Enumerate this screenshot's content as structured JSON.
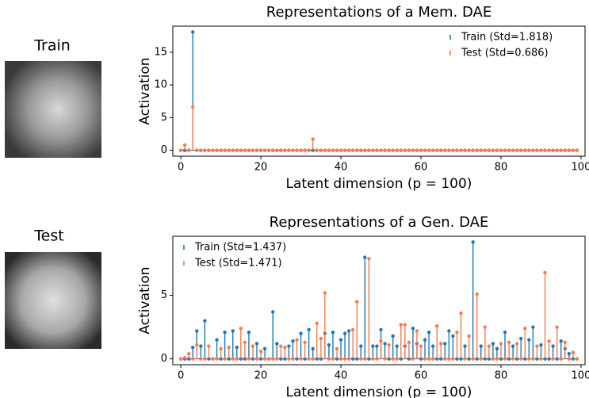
{
  "panels": [
    {
      "label": "Train"
    },
    {
      "label": "Test"
    }
  ],
  "chart_data": [
    {
      "type": "stem",
      "title": "Representations of a Mem. DAE",
      "xlabel": "Latent dimension (p = 100)",
      "ylabel": "Activation",
      "legend": "upper right",
      "x": [
        0,
        1,
        2,
        3,
        4,
        5,
        6,
        7,
        8,
        9,
        10,
        11,
        12,
        13,
        14,
        15,
        16,
        17,
        18,
        19,
        20,
        21,
        22,
        23,
        24,
        25,
        26,
        27,
        28,
        29,
        30,
        31,
        32,
        33,
        34,
        35,
        36,
        37,
        38,
        39,
        40,
        41,
        42,
        43,
        44,
        45,
        46,
        47,
        48,
        49,
        50,
        51,
        52,
        53,
        54,
        55,
        56,
        57,
        58,
        59,
        60,
        61,
        62,
        63,
        64,
        65,
        66,
        67,
        68,
        69,
        70,
        71,
        72,
        73,
        74,
        75,
        76,
        77,
        78,
        79,
        80,
        81,
        82,
        83,
        84,
        85,
        86,
        87,
        88,
        89,
        90,
        91,
        92,
        93,
        94,
        95,
        96,
        97,
        98,
        99
      ],
      "xlim": [
        -2,
        101
      ],
      "xticks": [
        0,
        20,
        40,
        60,
        80,
        100
      ],
      "ylim": [
        -0.9,
        19
      ],
      "yticks": [
        0,
        5,
        10,
        15
      ],
      "series": [
        {
          "name": "Train (Std=1.818)",
          "color": "#1f77b4",
          "values": [
            0,
            0,
            0,
            18.1,
            0,
            0,
            0,
            0,
            0,
            0,
            0,
            0,
            0,
            0,
            0,
            0,
            0,
            0,
            0,
            0,
            0,
            0,
            0,
            0,
            0,
            0,
            0,
            0,
            0,
            0,
            0,
            0,
            0,
            0,
            0,
            0,
            0,
            0,
            0,
            0,
            0,
            0,
            0,
            0,
            0,
            0,
            0,
            0,
            0,
            0,
            0,
            0,
            0,
            0,
            0,
            0,
            0,
            0,
            0,
            0,
            0,
            0,
            0,
            0,
            0,
            0,
            0,
            0,
            0,
            0,
            0,
            0,
            0,
            0,
            0,
            0,
            0,
            0,
            0,
            0,
            0,
            0,
            0,
            0,
            0,
            0,
            0,
            0,
            0,
            0,
            0,
            0,
            0,
            0,
            0,
            0,
            0,
            0,
            0,
            0
          ]
        },
        {
          "name": "Test (Std=0.686)",
          "color": "#f27c50",
          "values": [
            0,
            0.8,
            0,
            6.6,
            0,
            0,
            0,
            0,
            0,
            0,
            0,
            0,
            0,
            0,
            0,
            0,
            0,
            0,
            0,
            0,
            0,
            0,
            0,
            0,
            0,
            0,
            0,
            0,
            0,
            0,
            0,
            0,
            0,
            1.7,
            0,
            0,
            0,
            0,
            0,
            0,
            0,
            0,
            0,
            0,
            0,
            0,
            0,
            0,
            0,
            0,
            0,
            0,
            0,
            0,
            0,
            0,
            0,
            0,
            0,
            0,
            0,
            0,
            0,
            0,
            0,
            0,
            0,
            0,
            0,
            0,
            0,
            0,
            0,
            0,
            0,
            0,
            0,
            0,
            0,
            0,
            0,
            0,
            0,
            0,
            0,
            0,
            0,
            0,
            0,
            0,
            0,
            0,
            0,
            0,
            0,
            0,
            0,
            0,
            0,
            0
          ]
        }
      ]
    },
    {
      "type": "stem",
      "title": "Representations of a Gen. DAE",
      "xlabel": "Latent dimension (p = 100)",
      "ylabel": "Activation",
      "legend": "upper left",
      "x": [
        0,
        1,
        2,
        3,
        4,
        5,
        6,
        7,
        8,
        9,
        10,
        11,
        12,
        13,
        14,
        15,
        16,
        17,
        18,
        19,
        20,
        21,
        22,
        23,
        24,
        25,
        26,
        27,
        28,
        29,
        30,
        31,
        32,
        33,
        34,
        35,
        36,
        37,
        38,
        39,
        40,
        41,
        42,
        43,
        44,
        45,
        46,
        47,
        48,
        49,
        50,
        51,
        52,
        53,
        54,
        55,
        56,
        57,
        58,
        59,
        60,
        61,
        62,
        63,
        64,
        65,
        66,
        67,
        68,
        69,
        70,
        71,
        72,
        73,
        74,
        75,
        76,
        77,
        78,
        79,
        80,
        81,
        82,
        83,
        84,
        85,
        86,
        87,
        88,
        89,
        90,
        91,
        92,
        93,
        94,
        95,
        96,
        97,
        98,
        99
      ],
      "xlim": [
        -2,
        101
      ],
      "xticks": [
        0,
        20,
        40,
        60,
        80,
        100
      ],
      "ylim": [
        -0.46,
        9.66
      ],
      "yticks": [
        0,
        5
      ],
      "series": [
        {
          "name": "Train (Std=1.437)",
          "color": "#1f77b4",
          "values": [
            0,
            0,
            0,
            0.9,
            2.2,
            1.0,
            3.0,
            0,
            0,
            1.5,
            0,
            2.1,
            0,
            2.2,
            0.9,
            0,
            0,
            2.1,
            0,
            1.2,
            0,
            0.8,
            0,
            3.7,
            1.2,
            0,
            0,
            1.0,
            1.4,
            0,
            2.0,
            0,
            2.3,
            0.8,
            0,
            0,
            2.0,
            1.1,
            2.1,
            0,
            1.5,
            2.0,
            2.2,
            0,
            0,
            1.0,
            8.0,
            0,
            1.0,
            1.0,
            2.3,
            1.2,
            0,
            1.8,
            1.0,
            0,
            1.0,
            0,
            2.4,
            1.2,
            0,
            1.5,
            2.1,
            1.0,
            0,
            0,
            1.2,
            2.2,
            1.8,
            0,
            0,
            1.0,
            0,
            9.2,
            0,
            1.0,
            0,
            0,
            1.2,
            0.8,
            0,
            2.1,
            0,
            1.0,
            0,
            1.6,
            0,
            1.5,
            2.5,
            0,
            1.1,
            0,
            0,
            1.0,
            0,
            1.4,
            0.8,
            0.4,
            0,
            0
          ]
        },
        {
          "name": "Test (Std=1.471)",
          "color": "#f27c50",
          "values": [
            0,
            0.1,
            0.4,
            0,
            1.1,
            0,
            0,
            1.0,
            0,
            0,
            0.8,
            0,
            0.9,
            0,
            0,
            2.4,
            1.3,
            0,
            1.0,
            0,
            0.6,
            0,
            0,
            0,
            0,
            1.0,
            0.9,
            0,
            0,
            1.5,
            0,
            1.3,
            0,
            0,
            2.8,
            1.6,
            5.2,
            0,
            0,
            0.8,
            0,
            0,
            0,
            2.3,
            4.5,
            0,
            0,
            7.9,
            0,
            0,
            1.4,
            0,
            1.1,
            0,
            0,
            2.7,
            2.7,
            1.3,
            0,
            2.2,
            1.0,
            0,
            0,
            0,
            2.6,
            1.2,
            0,
            0,
            0,
            2.1,
            3.6,
            0,
            1.8,
            0,
            5.1,
            0,
            2.5,
            1.0,
            0,
            0,
            1.2,
            0,
            1.3,
            0,
            1.2,
            0,
            2.4,
            0,
            0,
            1.0,
            0,
            6.8,
            1.4,
            0,
            2.5,
            0,
            1.3,
            0,
            0.5,
            0
          ]
        }
      ]
    }
  ]
}
